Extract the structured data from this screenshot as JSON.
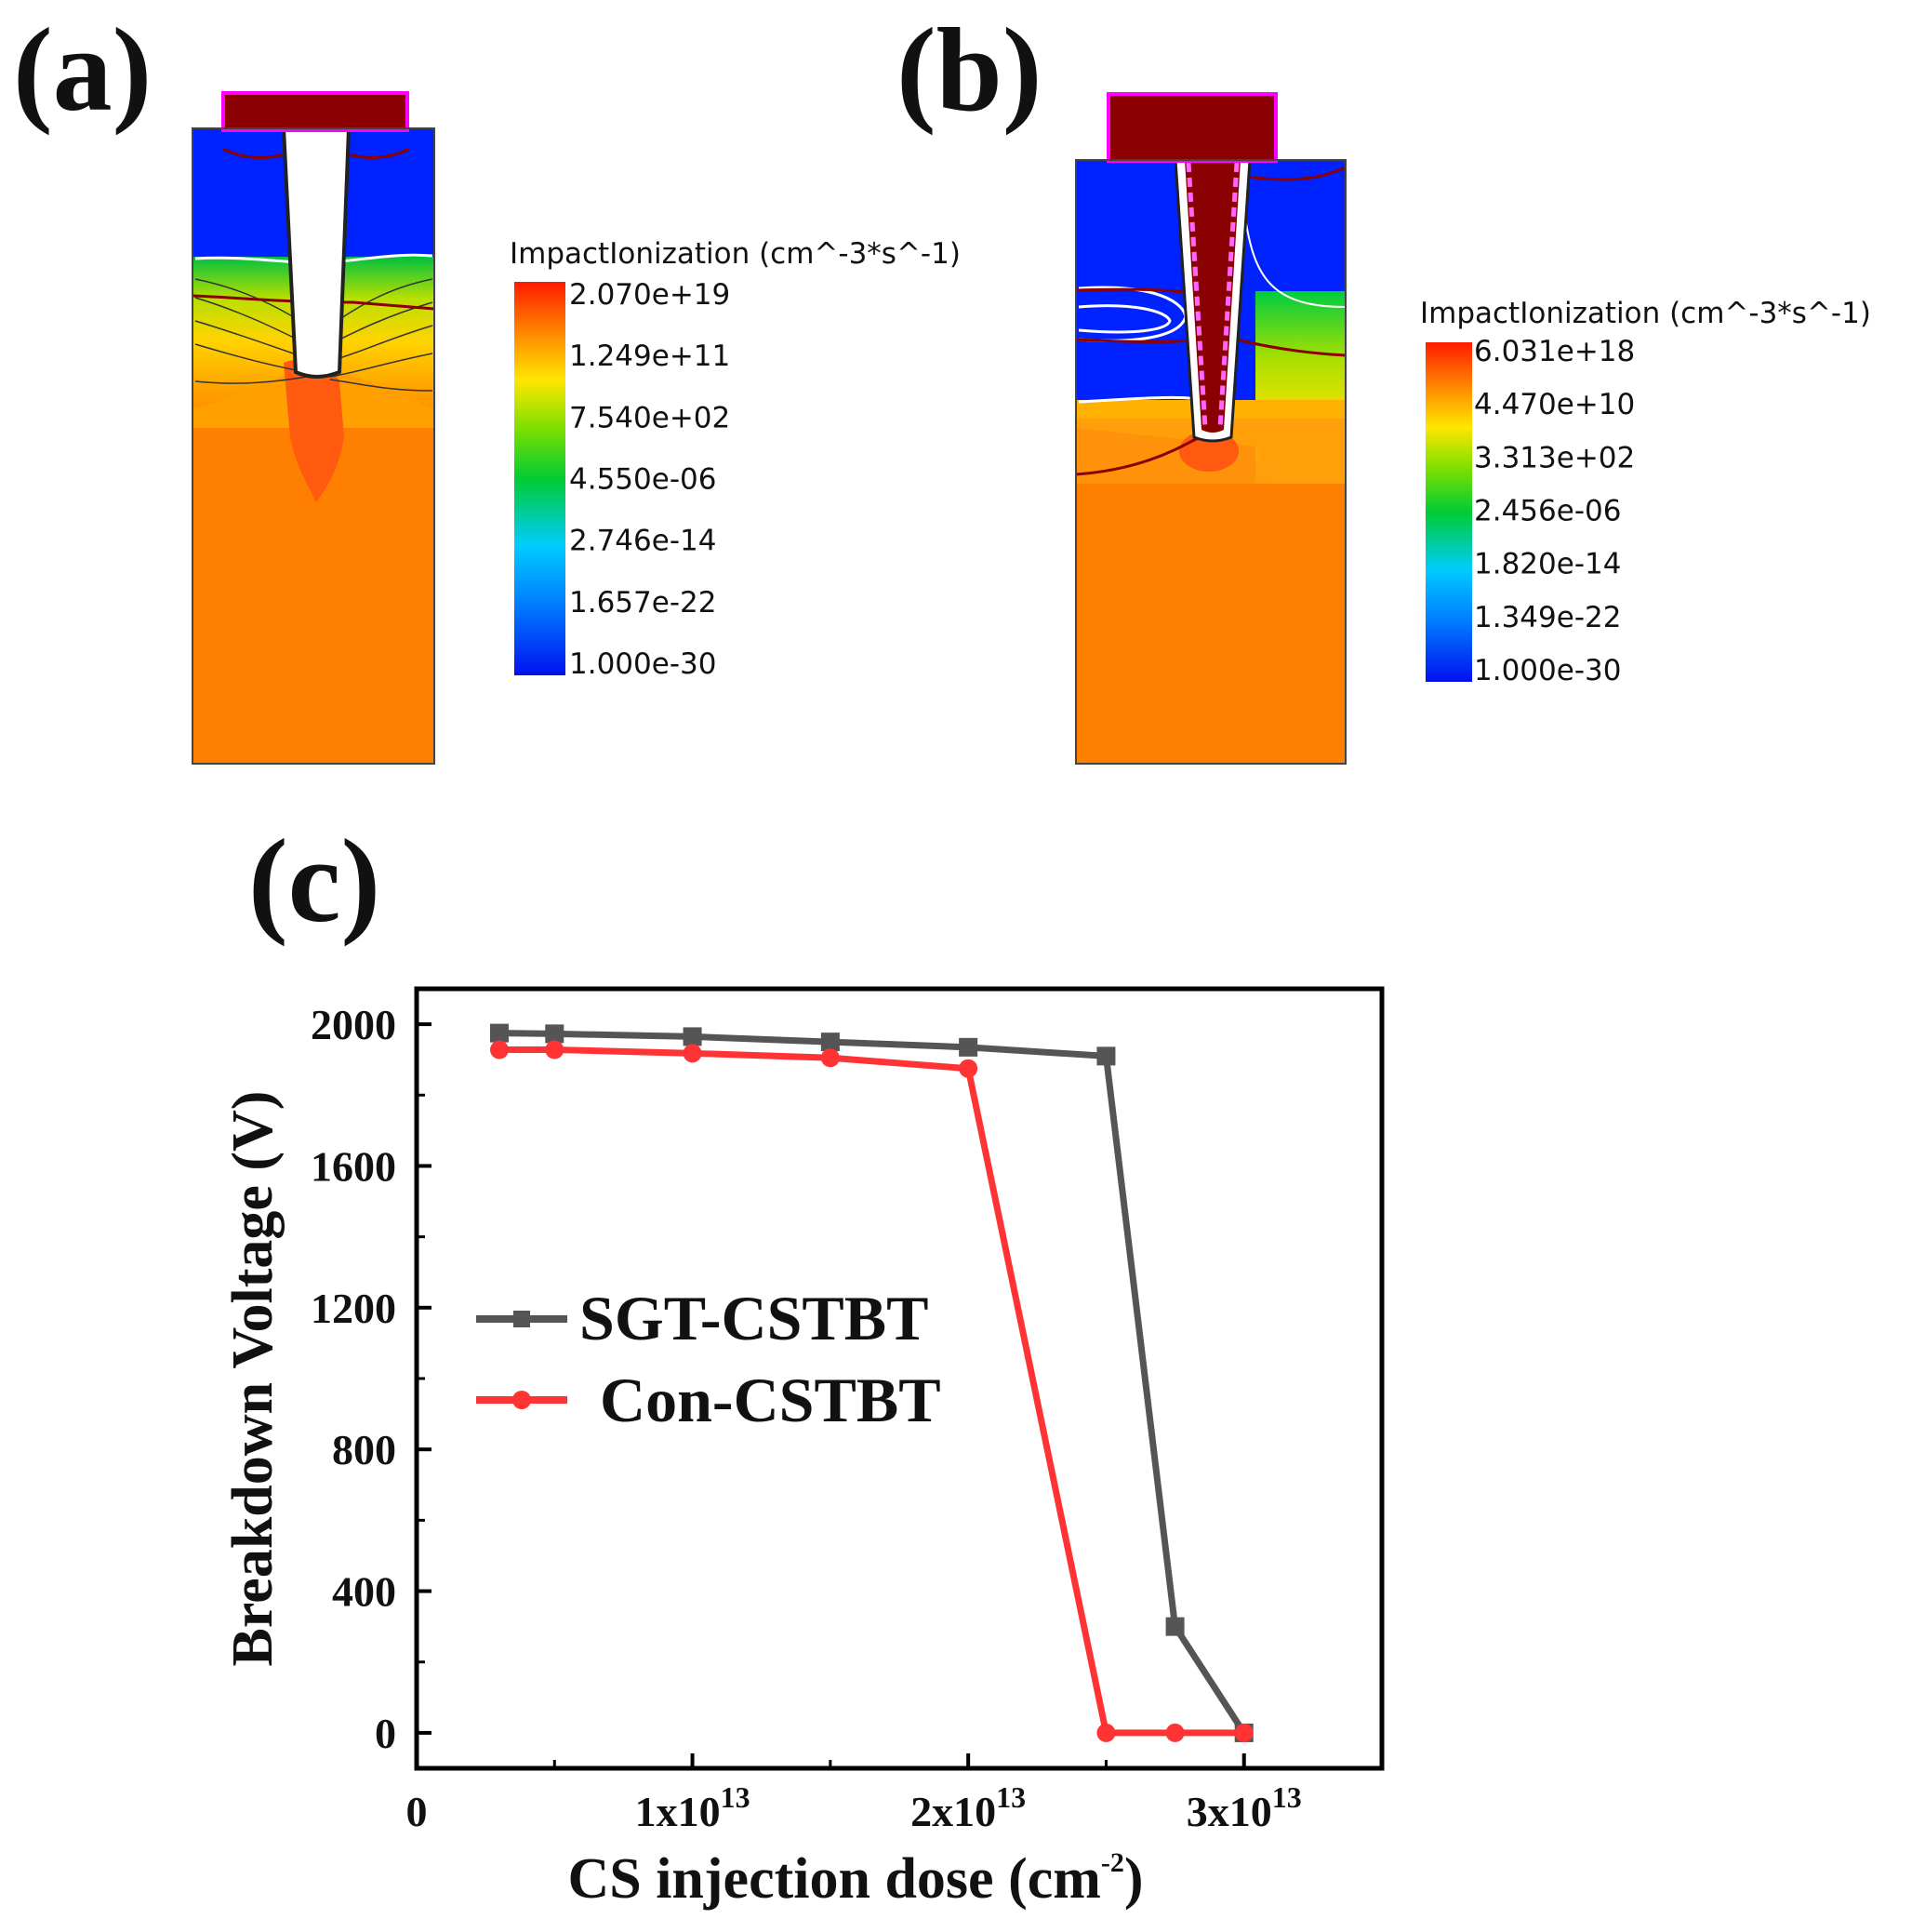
{
  "panels": {
    "a": {
      "label": "(a)",
      "colorbar_title": "ImpactIonization (cm^-3*s^-1)",
      "colorbar_ticks": [
        "2.070e+19",
        "1.249e+11",
        "7.540e+02",
        "4.550e-06",
        "2.746e-14",
        "1.657e-22",
        "1.000e-30"
      ]
    },
    "b": {
      "label": "(b)",
      "colorbar_title": "ImpactIonization (cm^-3*s^-1)",
      "colorbar_ticks": [
        "6.031e+18",
        "4.470e+10",
        "3.313e+02",
        "2.456e-06",
        "1.820e-14",
        "1.349e-22",
        "1.000e-30"
      ]
    },
    "c": {
      "label": "(c)"
    }
  },
  "colors": {
    "sgt": "#555555",
    "con": "#ff3333",
    "metal": "#8b0000",
    "high_field": "#ff7f0e",
    "low_field": "#0033ff"
  },
  "chart_data": {
    "type": "line",
    "x_ticks": [
      {
        "value": 10000000000000.0,
        "mantissa": "1x10",
        "exp": "13"
      },
      {
        "value": 20000000000000.0,
        "mantissa": "2x10",
        "exp": "13"
      },
      {
        "value": 30000000000000.0,
        "mantissa": "3x10",
        "exp": "13"
      }
    ],
    "x_zero_label": "0",
    "y_ticks": [
      0,
      400,
      800,
      1200,
      1600,
      2000
    ],
    "xlim": [
      0,
      35000000000000.0
    ],
    "ylim": [
      -100,
      2100
    ],
    "xlabel_main": "CS injection dose (cm",
    "xlabel_exp": "-2",
    "xlabel_close": ")",
    "ylabel": "Breakdown Voltage (V)",
    "series": [
      {
        "name": "SGT-CSTBT",
        "color": "#555555",
        "marker": "square",
        "x": [
          3000000000000.0,
          5000000000000.0,
          10000000000000.0,
          15000000000000.0,
          20000000000000.0,
          25000000000000.0,
          27500000000000.0,
          30000000000000.0
        ],
        "y": [
          1975,
          1973,
          1965,
          1950,
          1935,
          1910,
          300,
          0
        ]
      },
      {
        "name": "Con-CSTBT",
        "color": "#ff3333",
        "marker": "circle",
        "x": [
          3000000000000.0,
          5000000000000.0,
          10000000000000.0,
          15000000000000.0,
          20000000000000.0,
          25000000000000.0,
          27500000000000.0,
          30000000000000.0
        ],
        "y": [
          1928,
          1928,
          1918,
          1905,
          1875,
          0,
          0,
          0
        ]
      }
    ]
  }
}
